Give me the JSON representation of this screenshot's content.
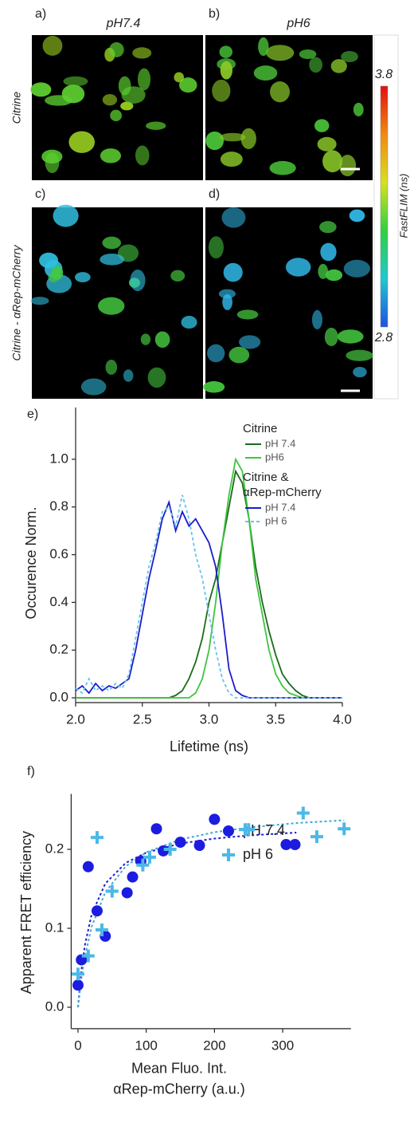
{
  "figure": {
    "labels": [
      "a)",
      "b)",
      "c)",
      "d)",
      "e)",
      "f)"
    ],
    "columns": [
      "pH7.4",
      "pH6"
    ],
    "rows": [
      "Citrine",
      "Citrine - αRep-mCherry"
    ],
    "colorbar": {
      "title": "FastFLIM (ns)",
      "max": 3.8,
      "min": 2.8
    }
  },
  "chart_data": [
    {
      "type": "line",
      "x_label": "Lifetime (ns)",
      "y_label": "Occurence Norm.",
      "legend_groups": [
        [
          "Citrine"
        ],
        [
          "Citrine &",
          "αRep-mCherry"
        ]
      ],
      "x": [
        2.0,
        2.05,
        2.1,
        2.15,
        2.2,
        2.25,
        2.3,
        2.35,
        2.4,
        2.45,
        2.5,
        2.55,
        2.6,
        2.65,
        2.7,
        2.75,
        2.8,
        2.85,
        2.9,
        2.95,
        3.0,
        3.05,
        3.1,
        3.15,
        3.2,
        3.25,
        3.3,
        3.35,
        3.4,
        3.45,
        3.5,
        3.55,
        3.6,
        3.65,
        3.7,
        3.75,
        3.8,
        3.85,
        3.9,
        3.95,
        4.0
      ],
      "series": [
        {
          "name": "pH 7.4",
          "color": "#1b6b1b",
          "dash": false,
          "values": [
            0,
            0,
            0,
            0,
            0,
            0,
            0,
            0,
            0,
            0,
            0,
            0,
            0,
            0,
            0,
            0.01,
            0.03,
            0.08,
            0.15,
            0.25,
            0.4,
            0.5,
            0.65,
            0.8,
            0.95,
            0.9,
            0.75,
            0.55,
            0.4,
            0.28,
            0.18,
            0.1,
            0.06,
            0.03,
            0.01,
            0,
            0,
            0,
            0,
            0,
            0
          ]
        },
        {
          "name": "pH6",
          "color": "#3fc43f",
          "dash": false,
          "values": [
            0,
            0,
            0,
            0,
            0,
            0,
            0,
            0,
            0,
            0,
            0,
            0,
            0,
            0,
            0,
            0,
            0,
            0,
            0.02,
            0.08,
            0.2,
            0.4,
            0.65,
            0.85,
            1.0,
            0.95,
            0.75,
            0.5,
            0.35,
            0.2,
            0.1,
            0.05,
            0.02,
            0.01,
            0,
            0,
            0,
            0,
            0,
            0,
            0
          ]
        },
        {
          "name": "pH 7.4",
          "color": "#1c1ccc",
          "dash": false,
          "values": [
            0.03,
            0.05,
            0.02,
            0.06,
            0.03,
            0.05,
            0.04,
            0.06,
            0.08,
            0.2,
            0.35,
            0.5,
            0.62,
            0.75,
            0.82,
            0.7,
            0.78,
            0.72,
            0.75,
            0.7,
            0.65,
            0.55,
            0.35,
            0.12,
            0.03,
            0.01,
            0,
            0,
            0,
            0,
            0,
            0,
            0,
            0,
            0,
            0,
            0,
            0,
            0,
            0,
            0
          ]
        },
        {
          "name": "pH 6",
          "color": "#66c4f0",
          "dash": true,
          "values": [
            0.04,
            0.02,
            0.08,
            0.03,
            0.05,
            0.03,
            0.06,
            0.04,
            0.1,
            0.25,
            0.4,
            0.55,
            0.65,
            0.78,
            0.8,
            0.72,
            0.85,
            0.75,
            0.6,
            0.5,
            0.35,
            0.2,
            0.08,
            0.02,
            0,
            0,
            0,
            0,
            0,
            0,
            0,
            0,
            0,
            0,
            0,
            0,
            0,
            0,
            0,
            0,
            0
          ]
        }
      ],
      "xlim": [
        2.0,
        4.0
      ],
      "xticks": [
        {
          "value": 2,
          "label": "2.0"
        },
        {
          "value": 2.5,
          "label": "2.5"
        },
        {
          "value": 3,
          "label": "3.0"
        },
        {
          "value": 3.5,
          "label": "3.5"
        },
        {
          "value": 4,
          "label": "4.0"
        }
      ],
      "ylim": [
        -0.02,
        1.15
      ],
      "yticks": [
        {
          "value": 0,
          "label": "0.0"
        },
        {
          "value": 0.2,
          "label": "0.2"
        },
        {
          "value": 0.4,
          "label": "0.4"
        },
        {
          "value": 0.6,
          "label": "0.6"
        },
        {
          "value": 0.8,
          "label": "0.8"
        },
        {
          "value": 1,
          "label": "1.0"
        }
      ]
    },
    {
      "type": "scatter",
      "x_label": [
        "Mean Fluo. Int.",
        "αRep-mCherry (a.u.)"
      ],
      "y_label": "Apparent FRET efficiency",
      "series": [
        {
          "name": "pH 7.4",
          "color": "#1c1ce0",
          "marker": "circle",
          "x": [
            0,
            5,
            15,
            28,
            40,
            72,
            80,
            92,
            115,
            125,
            150,
            178,
            200,
            305,
            318
          ],
          "values": [
            0.028,
            0.06,
            0.178,
            0.122,
            0.09,
            0.145,
            0.165,
            0.185,
            0.226,
            0.198,
            0.209,
            0.205,
            0.238,
            0.206,
            0.206
          ]
        },
        {
          "name": "pH 6",
          "color": "#4cb8e8",
          "marker": "plus",
          "x": [
            0,
            15,
            28,
            35,
            50,
            95,
            105,
            135,
            245,
            250,
            330,
            350,
            390
          ],
          "values": [
            0.042,
            0.065,
            0.215,
            0.098,
            0.147,
            0.18,
            0.19,
            0.2,
            0.225,
            0.225,
            0.246,
            0.216,
            0.226
          ]
        }
      ],
      "fits": [
        {
          "color": "#1c1ccc",
          "x": [
            0,
            5,
            10,
            20,
            40,
            70,
            100,
            150,
            200,
            250,
            320
          ],
          "values": [
            0,
            0.047,
            0.0783,
            0.1175,
            0.1567,
            0.1828,
            0.1958,
            0.2074,
            0.2136,
            0.2176,
            0.2212
          ]
        },
        {
          "color": "#40a8d8",
          "x": [
            0,
            5,
            10,
            20,
            40,
            70,
            100,
            150,
            200,
            250,
            320,
            390
          ],
          "values": [
            0,
            0.0364,
            0.0638,
            0.102,
            0.1457,
            0.1785,
            0.1962,
            0.2125,
            0.2217,
            0.2277,
            0.2333,
            0.2368
          ]
        }
      ],
      "xlim": [
        -10,
        400
      ],
      "xticks": [
        0,
        100,
        200,
        300
      ],
      "ylim": [
        -0.01,
        0.25
      ],
      "yticks": [
        {
          "value": 0,
          "label": "0.0"
        },
        {
          "value": 0.1,
          "label": "0.1"
        },
        {
          "value": 0.2,
          "label": "0.2"
        }
      ]
    }
  ]
}
